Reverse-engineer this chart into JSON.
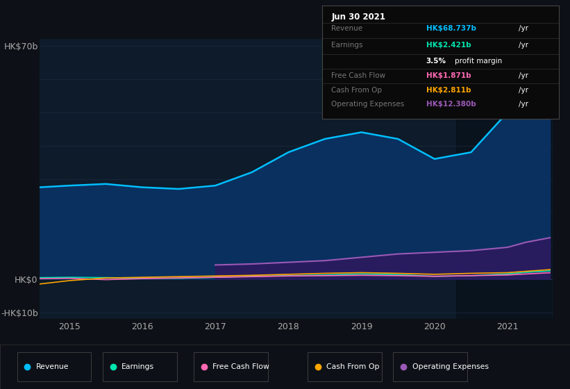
{
  "background_color": "#0d1117",
  "plot_bg_color": "#0d1b2a",
  "grid_color": "#1e3048",
  "title_date": "Jun 30 2021",
  "x_years": [
    2014.6,
    2015.0,
    2015.5,
    2016.0,
    2016.5,
    2017.0,
    2017.5,
    2018.0,
    2018.5,
    2019.0,
    2019.5,
    2020.0,
    2020.5,
    2021.0,
    2021.25,
    2021.58
  ],
  "revenue": [
    27.5,
    28.0,
    28.5,
    27.5,
    27.0,
    28.0,
    32.0,
    38.0,
    42.0,
    44.0,
    42.0,
    36.0,
    38.0,
    50.0,
    62.0,
    68.737
  ],
  "earnings": [
    0.4,
    0.5,
    0.4,
    0.3,
    0.2,
    0.5,
    0.8,
    1.0,
    1.2,
    1.5,
    1.3,
    0.8,
    1.0,
    1.5,
    2.0,
    2.421
  ],
  "free_cash": [
    0.1,
    0.2,
    -0.2,
    0.1,
    0.3,
    0.5,
    0.7,
    0.9,
    1.0,
    1.1,
    1.0,
    0.8,
    1.0,
    1.2,
    1.5,
    1.871
  ],
  "cash_op": [
    -1.5,
    -0.5,
    0.3,
    0.5,
    0.7,
    0.9,
    1.1,
    1.4,
    1.7,
    1.9,
    1.7,
    1.4,
    1.7,
    1.9,
    2.3,
    2.811
  ],
  "op_expenses": [
    null,
    null,
    null,
    null,
    null,
    4.2,
    4.5,
    5.0,
    5.5,
    6.5,
    7.5,
    8.0,
    8.5,
    9.5,
    11.0,
    12.38
  ],
  "ylim": [
    -12,
    72
  ],
  "yticks": [
    -10,
    0,
    70
  ],
  "ytick_labels": [
    "-HK$10b",
    "HK$0",
    "HK$70b"
  ],
  "xticks": [
    2015,
    2016,
    2017,
    2018,
    2019,
    2020,
    2021
  ],
  "revenue_color": "#00bfff",
  "revenue_fill": "#0a3060",
  "earnings_color": "#00e5b0",
  "free_cash_color": "#ff69b4",
  "cash_op_color": "#ffa500",
  "op_expenses_color": "#9b59b6",
  "op_expenses_fill": "#2a1b5e",
  "legend_items": [
    {
      "label": "Revenue",
      "color": "#00bfff"
    },
    {
      "label": "Earnings",
      "color": "#00e5b0"
    },
    {
      "label": "Free Cash Flow",
      "color": "#ff69b4"
    },
    {
      "label": "Cash From Op",
      "color": "#ffa500"
    },
    {
      "label": "Operating Expenses",
      "color": "#9b59b6"
    }
  ],
  "info_rows": [
    {
      "label": "Revenue",
      "value": "HK$68.737b",
      "value_color": "#00bfff"
    },
    {
      "label": "Earnings",
      "value": "HK$2.421b",
      "value_color": "#00e5b0"
    },
    {
      "label": "",
      "value": "3.5% profit margin",
      "value_color": "#ffffff"
    },
    {
      "label": "Free Cash Flow",
      "value": "HK$1.871b",
      "value_color": "#ff69b4"
    },
    {
      "label": "Cash From Op",
      "value": "HK$2.811b",
      "value_color": "#ffa500"
    },
    {
      "label": "Operating Expenses",
      "value": "HK$12.380b",
      "value_color": "#9b59b6"
    }
  ]
}
